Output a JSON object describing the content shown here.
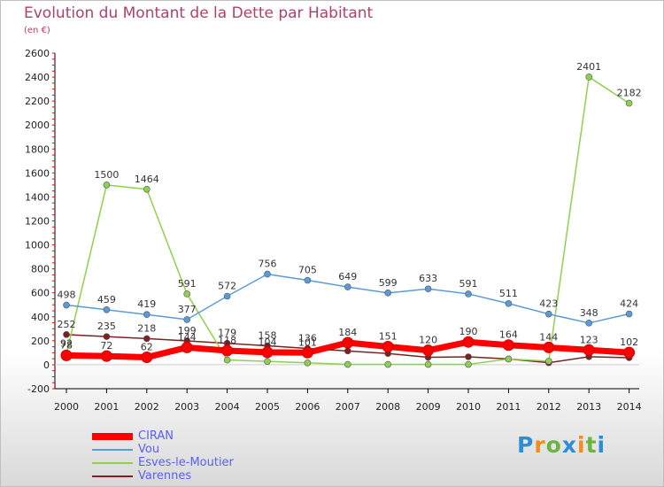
{
  "header": {
    "title": "Evolution du Montant de la Dette par Habitant",
    "subtitle": "(en €)"
  },
  "colors": {
    "title": "#b0406a",
    "legend_text": "#5a60f0"
  },
  "logo": {
    "letters": [
      "P",
      "r",
      "o",
      "x",
      "i",
      "t",
      "i"
    ],
    "colors": [
      "#2c8fd6",
      "#ef8d1f",
      "#6cb33f",
      "#2c8fd6",
      "#ef8d1f",
      "#6cb33f",
      "#2c8fd6"
    ]
  },
  "chart_data": {
    "type": "line",
    "title": "Evolution du Montant de la Dette par Habitant",
    "subtitle": "(en €)",
    "xlabel": "",
    "ylabel": "",
    "x": [
      "2000",
      "2001",
      "2002",
      "2003",
      "2004",
      "2005",
      "2006",
      "2007",
      "2008",
      "2009",
      "2010",
      "2011",
      "2012",
      "2013",
      "2014"
    ],
    "ylim": [
      -200,
      2600
    ],
    "yticks": [
      -200,
      0,
      200,
      400,
      600,
      800,
      1000,
      1200,
      1400,
      1600,
      1800,
      2000,
      2200,
      2400,
      2600
    ],
    "grid": false,
    "legend_position": "bottom-left",
    "series": [
      {
        "name": "CIRAN",
        "color": "#ff0000",
        "values": [
          78,
          72,
          62,
          144,
          118,
          104,
          101,
          184,
          151,
          120,
          190,
          164,
          144,
          123,
          102
        ],
        "labels": [
          "78",
          "72",
          "62",
          "144",
          "118",
          "104",
          "101",
          "184",
          "151",
          "120",
          "190",
          "164",
          "144",
          "123",
          "102"
        ]
      },
      {
        "name": "Vou",
        "color": "#5b9bd5",
        "values": [
          498,
          459,
          419,
          377,
          572,
          756,
          705,
          649,
          599,
          633,
          591,
          511,
          423,
          348,
          424
        ],
        "labels": [
          "498",
          "459",
          "419",
          "377",
          "572",
          "756",
          "705",
          "649",
          "599",
          "633",
          "591",
          "511",
          "423",
          "348",
          "424"
        ]
      },
      {
        "name": "Esves-le-Moutier",
        "color": "#8fd14f",
        "values": [
          92,
          1500,
          1464,
          591,
          40,
          28,
          16,
          3,
          3,
          3,
          3,
          48,
          30,
          2401,
          2182
        ],
        "labels": [
          "92",
          "1500",
          "1464",
          "591",
          "",
          "",
          "",
          "",
          "",
          "",
          "",
          "",
          "",
          "2401",
          "2182"
        ]
      },
      {
        "name": "Varennes",
        "color": "#7a2222",
        "values": [
          252,
          235,
          218,
          199,
          179,
          158,
          136,
          115,
          94,
          62,
          66,
          48,
          17,
          67,
          59
        ],
        "labels": [
          "252",
          "235",
          "218",
          "199",
          "179",
          "158",
          "136",
          "",
          "",
          "",
          "",
          "",
          "",
          "",
          ""
        ]
      }
    ]
  }
}
